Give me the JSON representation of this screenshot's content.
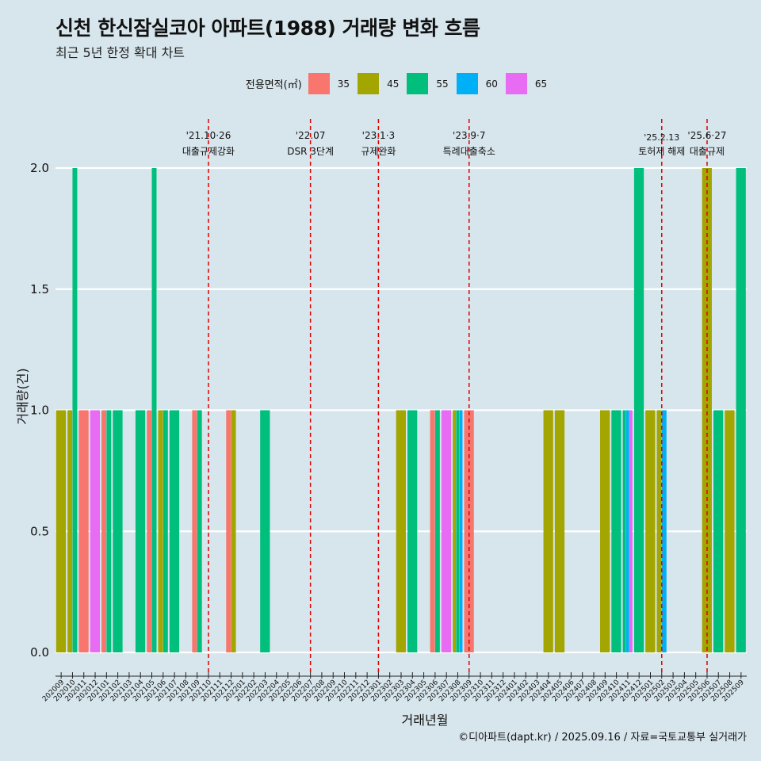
{
  "title": "신천 한신잠실코아 아파트(1988) 거래량 변화 흐름",
  "subtitle": "최근 5년 한정 확대 차트",
  "caption": "©디아파트(dapt.kr) / 2025.09.16 / 자료=국토교통부 실거래가",
  "legend": {
    "title": "전용면적(㎡)",
    "items": [
      {
        "label": "35",
        "color": "#f8766d"
      },
      {
        "label": "45",
        "color": "#a3a500"
      },
      {
        "label": "55",
        "color": "#00bf7d"
      },
      {
        "label": "60",
        "color": "#00b0f6"
      },
      {
        "label": "65",
        "color": "#e76bf3"
      }
    ]
  },
  "chart_data": {
    "type": "bar",
    "xlabel": "거래년월",
    "ylabel": "거래량(건)",
    "ylim": [
      0,
      2
    ],
    "yticks": [
      "0.0",
      "0.5",
      "1.0",
      "1.5",
      "2.0"
    ],
    "grid": true,
    "legend_position": "top",
    "categories": [
      "202009",
      "202010",
      "202011",
      "202012",
      "202101",
      "202102",
      "202103",
      "202104",
      "202105",
      "202106",
      "202107",
      "202108",
      "202109",
      "202110",
      "202111",
      "202112",
      "202201",
      "202202",
      "202203",
      "202204",
      "202205",
      "202206",
      "202207",
      "202208",
      "202209",
      "202210",
      "202211",
      "202212",
      "202301",
      "202302",
      "202303",
      "202304",
      "202305",
      "202306",
      "202307",
      "202308",
      "202309",
      "202310",
      "202311",
      "202312",
      "202401",
      "202402",
      "202403",
      "202404",
      "202405",
      "202406",
      "202407",
      "202408",
      "202409",
      "202410",
      "202411",
      "202412",
      "202501",
      "202502",
      "202503",
      "202504",
      "202505",
      "202506",
      "202507",
      "202508",
      "202509"
    ],
    "series": [
      {
        "name": "35",
        "color": "#f8766d",
        "values": [
          0,
          0,
          1,
          0,
          1,
          0,
          0,
          0,
          1,
          0,
          0,
          0,
          1,
          0,
          0,
          1,
          0,
          0,
          0,
          0,
          0,
          0,
          0,
          0,
          0,
          0,
          0,
          0,
          0,
          0,
          0,
          0,
          0,
          1,
          0,
          0,
          1,
          0,
          0,
          0,
          0,
          0,
          0,
          0,
          0,
          0,
          0,
          0,
          0,
          0,
          0,
          0,
          0,
          0,
          0,
          0,
          0,
          0,
          0,
          0,
          0
        ]
      },
      {
        "name": "45",
        "color": "#a3a500",
        "values": [
          1,
          1,
          0,
          0,
          0,
          0,
          0,
          0,
          0,
          1,
          0,
          0,
          0,
          0,
          0,
          1,
          0,
          0,
          0,
          0,
          0,
          0,
          0,
          0,
          0,
          0,
          0,
          0,
          0,
          0,
          1,
          0,
          0,
          0,
          0,
          1,
          0,
          0,
          0,
          0,
          0,
          0,
          0,
          1,
          1,
          0,
          0,
          0,
          1,
          0,
          0,
          0,
          1,
          1,
          0,
          0,
          0,
          2,
          0,
          1,
          0
        ]
      },
      {
        "name": "55",
        "color": "#00bf7d",
        "values": [
          0,
          2,
          0,
          0,
          1,
          1,
          0,
          1,
          2,
          1,
          1,
          0,
          1,
          0,
          0,
          0,
          0,
          0,
          1,
          0,
          0,
          0,
          0,
          0,
          0,
          0,
          0,
          0,
          0,
          0,
          0,
          1,
          0,
          1,
          0,
          1,
          0,
          0,
          0,
          0,
          0,
          0,
          0,
          0,
          0,
          0,
          0,
          0,
          0,
          1,
          1,
          2,
          0,
          0,
          0,
          0,
          0,
          0,
          1,
          0,
          2
        ]
      },
      {
        "name": "60",
        "color": "#00b0f6",
        "values": [
          0,
          0,
          0,
          0,
          0,
          0,
          0,
          0,
          0,
          0,
          0,
          0,
          0,
          0,
          0,
          0,
          0,
          0,
          0,
          0,
          0,
          0,
          0,
          0,
          0,
          0,
          0,
          0,
          0,
          0,
          0,
          0,
          0,
          0,
          0,
          1,
          0,
          0,
          0,
          0,
          0,
          0,
          0,
          0,
          0,
          0,
          0,
          0,
          0,
          0,
          1,
          0,
          0,
          1,
          0,
          0,
          0,
          0,
          0,
          0,
          0
        ]
      },
      {
        "name": "65",
        "color": "#e76bf3",
        "values": [
          0,
          0,
          0,
          1,
          0,
          0,
          0,
          0,
          0,
          0,
          0,
          0,
          0,
          0,
          0,
          0,
          0,
          0,
          0,
          0,
          0,
          0,
          0,
          0,
          0,
          0,
          0,
          0,
          0,
          0,
          0,
          0,
          0,
          0,
          1,
          0,
          0,
          0,
          0,
          0,
          0,
          0,
          0,
          0,
          0,
          0,
          0,
          0,
          0,
          0,
          1,
          0,
          0,
          0,
          0,
          0,
          0,
          0,
          0,
          0,
          0
        ]
      }
    ],
    "annotations": [
      {
        "date": "'21.10·26",
        "label": "대출규제강화",
        "at": "202110"
      },
      {
        "date": "'22.07",
        "label": "DSR 3단계",
        "at": "202207"
      },
      {
        "date": "'23.1·3",
        "label": "규제완화",
        "at": "202301"
      },
      {
        "date": "'23.9·7",
        "label": "특례대출축소",
        "at": "202309"
      },
      {
        "date": "'25.2.13",
        "label": "토허제 해제",
        "at": "202502"
      },
      {
        "date": "'25.6·27",
        "label": "대출규제",
        "at": "202506"
      }
    ]
  }
}
